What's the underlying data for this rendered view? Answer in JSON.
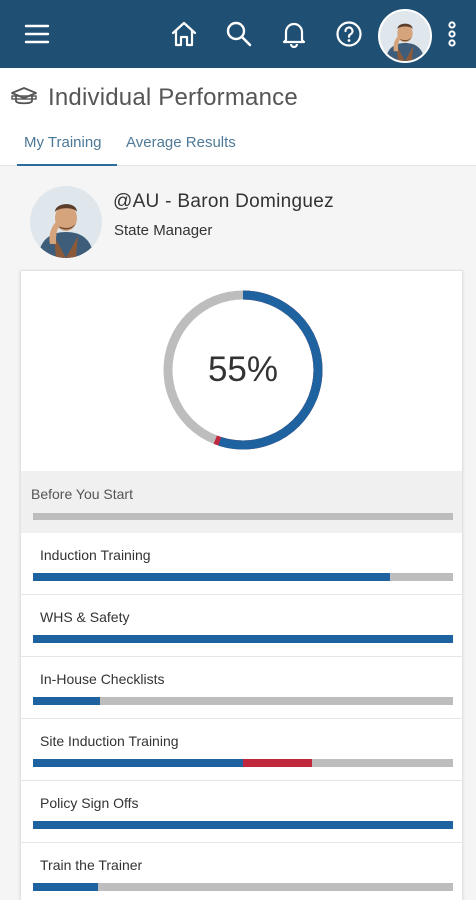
{
  "topbar": {
    "background": "#1f4f73",
    "icons": [
      "menu-icon",
      "home-icon",
      "search-icon",
      "bell-icon",
      "help-icon",
      "more-vertical-icon"
    ]
  },
  "header": {
    "title": "Individual Performance",
    "title_icon": "cap-icon",
    "tabs": [
      {
        "label": "My Training",
        "active": true
      },
      {
        "label": "Average Results",
        "active": false
      }
    ]
  },
  "profile": {
    "name": "@AU - Baron Dominguez",
    "role": "State Manager"
  },
  "summary": {
    "percent_label": "55%",
    "complete_fraction": 0.55,
    "failed_fraction": 0.01,
    "colors": {
      "complete": "#1f62a0",
      "failed": "#c0283d",
      "remaining": "#bdbdbd"
    }
  },
  "sections": [
    {
      "label": "Before You Start",
      "complete": 0,
      "failed": 0
    }
  ],
  "modules": [
    {
      "label": "Induction Training",
      "complete": 0.85,
      "failed": 0
    },
    {
      "label": "WHS & Safety",
      "complete": 1.0,
      "failed": 0
    },
    {
      "label": "In-House Checklists",
      "complete": 0.16,
      "failed": 0
    },
    {
      "label": "Site Induction Training",
      "complete": 0.5,
      "failed": 0.165
    },
    {
      "label": "Policy Sign Offs",
      "complete": 1.0,
      "failed": 0
    },
    {
      "label": "Train the Trainer",
      "complete": 0.155,
      "failed": 0
    }
  ]
}
